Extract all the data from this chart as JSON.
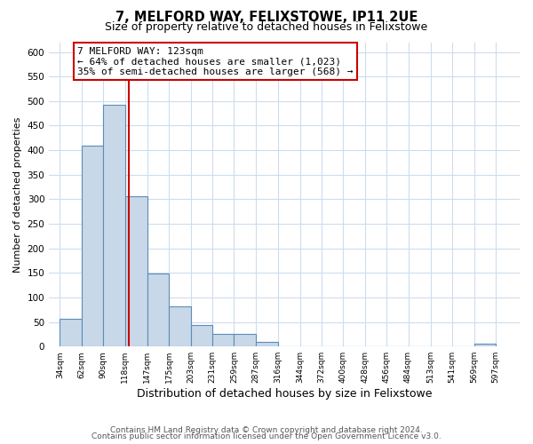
{
  "title": "7, MELFORD WAY, FELIXSTOWE, IP11 2UE",
  "subtitle": "Size of property relative to detached houses in Felixstowe",
  "xlabel": "Distribution of detached houses by size in Felixstowe",
  "ylabel": "Number of detached properties",
  "bar_left_edges": [
    34,
    62,
    90,
    118,
    147,
    175,
    203,
    231,
    259,
    287,
    316,
    344,
    372,
    400,
    428,
    456,
    484,
    513,
    541,
    569
  ],
  "bar_heights": [
    57,
    410,
    493,
    307,
    149,
    82,
    44,
    26,
    26,
    10,
    0,
    0,
    0,
    0,
    0,
    0,
    0,
    0,
    0,
    5
  ],
  "bar_widths": [
    28,
    28,
    28,
    29,
    28,
    28,
    28,
    28,
    28,
    29,
    28,
    28,
    28,
    28,
    28,
    28,
    29,
    28,
    28,
    28
  ],
  "bar_color": "#c8d8e8",
  "bar_edge_color": "#5b8db8",
  "property_line_x": 123,
  "property_line_color": "#cc0000",
  "annotation_line1": "7 MELFORD WAY: 123sqm",
  "annotation_line2": "← 64% of detached houses are smaller (1,023)",
  "annotation_line3": "35% of semi-detached houses are larger (568) →",
  "ylim": [
    0,
    620
  ],
  "yticks": [
    0,
    50,
    100,
    150,
    200,
    250,
    300,
    350,
    400,
    450,
    500,
    550,
    600
  ],
  "tick_labels": [
    "34sqm",
    "62sqm",
    "90sqm",
    "118sqm",
    "147sqm",
    "175sqm",
    "203sqm",
    "231sqm",
    "259sqm",
    "287sqm",
    "316sqm",
    "344sqm",
    "372sqm",
    "400sqm",
    "428sqm",
    "456sqm",
    "484sqm",
    "513sqm",
    "541sqm",
    "569sqm",
    "597sqm"
  ],
  "tick_positions": [
    34,
    62,
    90,
    118,
    147,
    175,
    203,
    231,
    259,
    287,
    316,
    344,
    372,
    400,
    428,
    456,
    484,
    513,
    541,
    569,
    597
  ],
  "xlim_left": 20,
  "xlim_right": 628,
  "footer_line1": "Contains HM Land Registry data © Crown copyright and database right 2024.",
  "footer_line2": "Contains public sector information licensed under the Open Government Licence v3.0.",
  "background_color": "#ffffff",
  "grid_color": "#ccddee",
  "title_fontsize": 10.5,
  "subtitle_fontsize": 9,
  "xlabel_fontsize": 9,
  "ylabel_fontsize": 8,
  "tick_fontsize": 6.5,
  "ytick_fontsize": 7.5,
  "footer_fontsize": 6.5,
  "ann_fontsize": 8
}
